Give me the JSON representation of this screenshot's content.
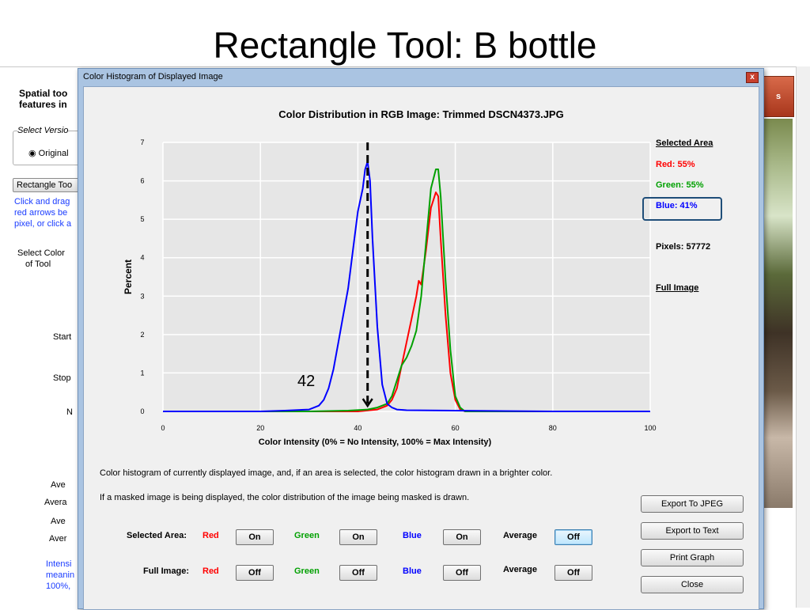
{
  "slide": {
    "title": "Rectangle Tool: B bottle"
  },
  "background_app": {
    "heading_line1": "Spatial too",
    "heading_line2": "features in",
    "select_version": "Select Versio",
    "original_option": "Original",
    "rectangle_button": "Rectangle Too",
    "help_line1": "Click and drag",
    "help_line2": "red arrows be",
    "help_line3": "pixel, or click a",
    "select_color_line1": "Select Color",
    "select_color_line2": "of Tool",
    "start_label": "Start",
    "stop_label": "Stop",
    "num_label": "N",
    "ave1": "Ave",
    "ave2": "Avera",
    "ave3": "Ave",
    "ave4": "Aver",
    "intensity_line1": "Intensi",
    "intensity_line2": "meanin",
    "intensity_line3": "100%,",
    "red_button_text": "s"
  },
  "dialog": {
    "window_title": "Color Histogram of Displayed Image",
    "close_glyph": "x",
    "annotation": "42",
    "caption1": "Color histogram of currently displayed image, and, if an area is selected, the color histogram drawn in a brighter color.",
    "caption2": "If a masked image is being displayed, the color distribution of the image being masked is drawn.",
    "legend": {
      "selected_area": "Selected Area",
      "red": "Red: 55%",
      "green": "Green: 55%",
      "blue": "Blue: 41%",
      "pixels": "Pixels: 57772",
      "full_image": "Full Image"
    },
    "selected_row": {
      "label": "Selected Area:",
      "red": "Red",
      "red_state": "On",
      "green": "Green",
      "green_state": "On",
      "blue": "Blue",
      "blue_state": "On",
      "average": "Average",
      "average_state": "Off"
    },
    "full_row": {
      "label": "Full Image:",
      "red": "Red",
      "red_state": "Off",
      "green": "Green",
      "green_state": "Off",
      "blue": "Blue",
      "blue_state": "Off",
      "average": "Average",
      "average_state": "Off"
    },
    "buttons": {
      "export_jpeg": "Export To JPEG",
      "export_text": "Export to Text",
      "print_graph": "Print Graph",
      "close": "Close"
    },
    "colors": {
      "red": "#ff0000",
      "green": "#00a000",
      "blue": "#0000ff",
      "frame": "#aac4e2"
    }
  },
  "chart_data": {
    "type": "line",
    "title": "Color Distribution in RGB Image: Trimmed DSCN4373.JPG",
    "xlabel": "Color Intensity (0% = No Intensity, 100% = Max Intensity)",
    "ylabel": "Percent",
    "xlim": [
      0,
      100
    ],
    "ylim": [
      0,
      7
    ],
    "xticks": [
      0,
      20,
      40,
      60,
      80,
      100
    ],
    "yticks": [
      0,
      1,
      2,
      3,
      4,
      5,
      6,
      7
    ],
    "grid": true,
    "marker_line_x": 42,
    "series": [
      {
        "name": "Red",
        "color": "#ff0000",
        "x": [
          0,
          40,
          44,
          46,
          47,
          48,
          49,
          50,
          51,
          52,
          52.5,
          53,
          54,
          55,
          56,
          56.5,
          57,
          58,
          59,
          60,
          61,
          62,
          70,
          86,
          100
        ],
        "y": [
          0,
          0,
          0.05,
          0.15,
          0.3,
          0.6,
          1.2,
          1.8,
          2.4,
          3.0,
          3.4,
          3.3,
          4.2,
          5.3,
          5.7,
          5.6,
          4.5,
          2.5,
          1.0,
          0.3,
          0.05,
          0,
          0,
          0,
          0
        ]
      },
      {
        "name": "Green",
        "color": "#00a000",
        "x": [
          0,
          30,
          38,
          42,
          44,
          46,
          47,
          48,
          49,
          50,
          51,
          52,
          53,
          54,
          55,
          56,
          56.5,
          57,
          58,
          59,
          60,
          61,
          62,
          70,
          100
        ],
        "y": [
          0,
          0,
          0.02,
          0.05,
          0.1,
          0.2,
          0.4,
          0.8,
          1.2,
          1.4,
          1.7,
          2.1,
          3.0,
          4.4,
          5.8,
          6.3,
          6.3,
          5.6,
          3.4,
          1.6,
          0.4,
          0.1,
          0,
          0,
          0
        ]
      },
      {
        "name": "Blue",
        "color": "#0000ff",
        "x": [
          0,
          20,
          25,
          30,
          32,
          33,
          34,
          35,
          36,
          37,
          38,
          39,
          40,
          41,
          41.5,
          42,
          42.5,
          43,
          44,
          45,
          46,
          47,
          48,
          50,
          60,
          80,
          100
        ],
        "y": [
          0,
          0,
          0.02,
          0.05,
          0.15,
          0.3,
          0.6,
          1.1,
          1.8,
          2.5,
          3.2,
          4.2,
          5.2,
          5.8,
          6.3,
          6.5,
          6.0,
          4.5,
          2.2,
          0.7,
          0.2,
          0.1,
          0.05,
          0.03,
          0.02,
          0,
          0
        ]
      }
    ]
  }
}
